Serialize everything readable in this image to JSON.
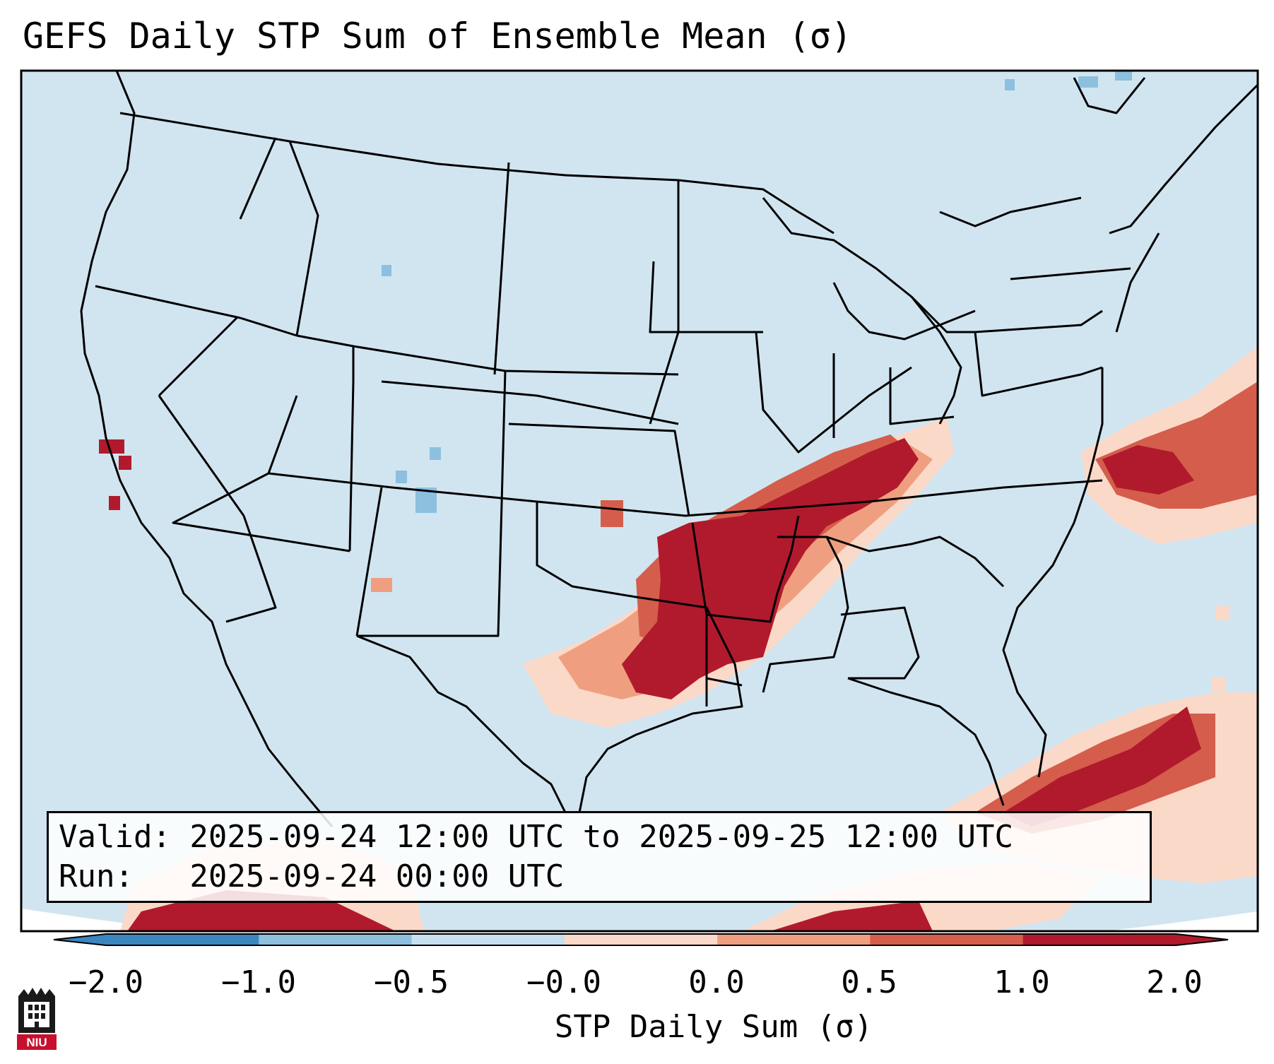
{
  "title": "GEFS Daily STP Sum of Ensemble Mean (σ)",
  "info": {
    "valid_line": "Valid: 2025-09-24 12:00 UTC to 2025-09-25 12:00 UTC",
    "run_line": "Run:   2025-09-24 00:00 UTC"
  },
  "colorbar": {
    "label": "STP Daily Sum (σ)",
    "ticks": [
      "−2.0",
      "−1.0",
      "−0.5",
      "−0.0",
      "0.0",
      "0.5",
      "1.0",
      "2.0"
    ],
    "bin_colors": [
      "#3a86bf",
      "#8cc0de",
      "#c6e0ef",
      "#ffffff",
      "#fbd9c8",
      "#ef9f80",
      "#d55d4c",
      "#b11a2c"
    ]
  },
  "colors": {
    "background": "#d1e5f0",
    "dark_red": "#b11a2c",
    "med_red": "#d55d4c",
    "light_red": "#ef9f80",
    "pale_red": "#fbd9c8"
  },
  "logo": {
    "text": "NIU"
  }
}
